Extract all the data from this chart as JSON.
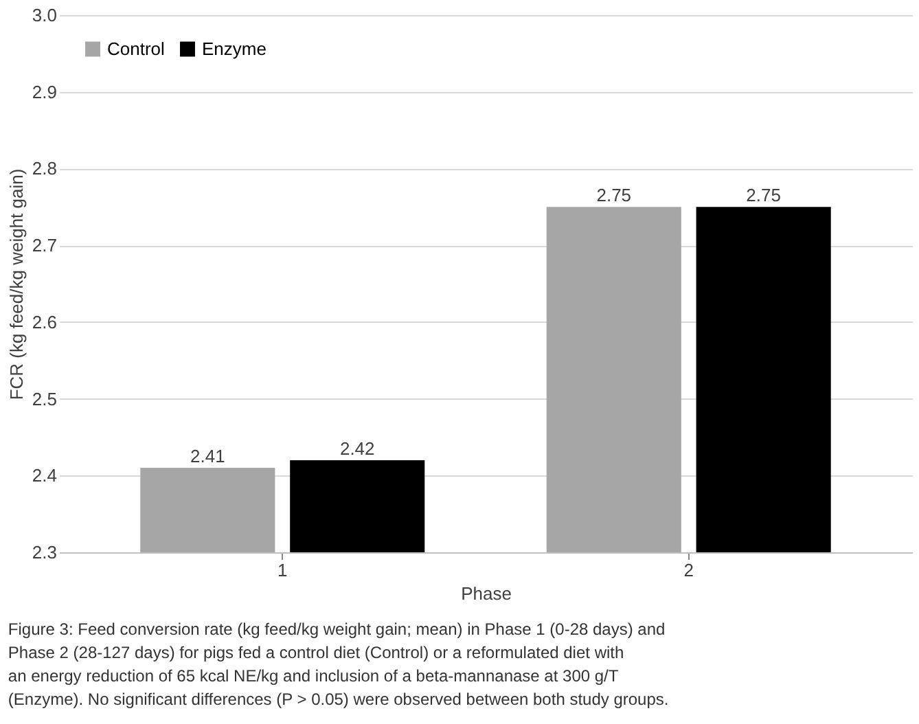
{
  "chart_data": {
    "type": "bar",
    "xlabel": "Phase",
    "ylabel": "FCR (kg feed/kg weight gain)",
    "categories": [
      "1",
      "2"
    ],
    "series": [
      {
        "name": "Control",
        "color": "#a6a6a6",
        "values": [
          2.41,
          2.75
        ]
      },
      {
        "name": "Enzyme",
        "color": "#000000",
        "values": [
          2.42,
          2.75
        ]
      }
    ],
    "ylim": [
      2.3,
      3.0
    ],
    "yticks": [
      2.3,
      2.4,
      2.5,
      2.6,
      2.7,
      2.8,
      2.9,
      {
        "value": 3.0,
        "label": "3.0"
      }
    ],
    "grid": "y",
    "legend": "top left",
    "data_labels": true,
    "annotations": [
      "Figure 3: Feed conversion rate (kg feed/kg weight gain; mean) in Phase 1 (0-28 days) and Phase 2 (28-127 days) for pigs fed a control diet (Control) or a reformulated diet with an energy reduction of 65 kcal NE/kg and inclusion of a beta-mannanase at 300 g/T (Enzyme). No significant differences (P > 0.05) were observed between both study groups."
    ]
  }
}
